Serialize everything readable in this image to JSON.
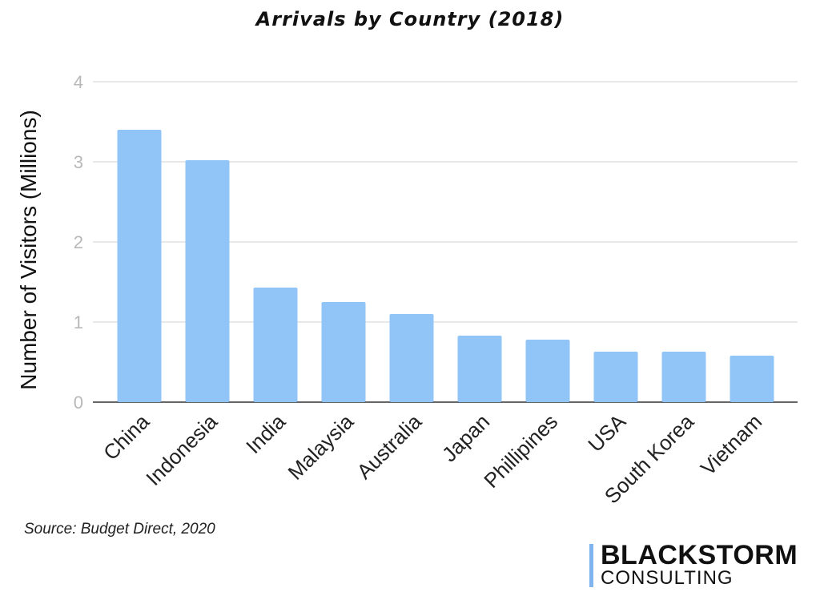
{
  "chart_data": {
    "type": "bar",
    "title": "Arrivals by Country (2018)",
    "ylabel": "Number of Visitors (Millions)",
    "categories": [
      "China",
      "Indonesia",
      "India",
      "Malaysia",
      "Australia",
      "Japan",
      "Phillipines",
      "USA",
      "South Korea",
      "Vietnam"
    ],
    "values": [
      3.4,
      3.02,
      1.43,
      1.25,
      1.1,
      0.83,
      0.78,
      0.63,
      0.63,
      0.58
    ],
    "ylim": [
      0,
      4
    ],
    "yticks": [
      "0",
      "1",
      "2",
      "3",
      "4"
    ],
    "grid": true,
    "bar_color": "#92c5f7"
  },
  "source": "Source: Budget Direct, 2020",
  "brand": {
    "name_top": "BLACKSTORM",
    "name_bottom": "CONSULTING",
    "accent_color": "#7fb4ee"
  }
}
